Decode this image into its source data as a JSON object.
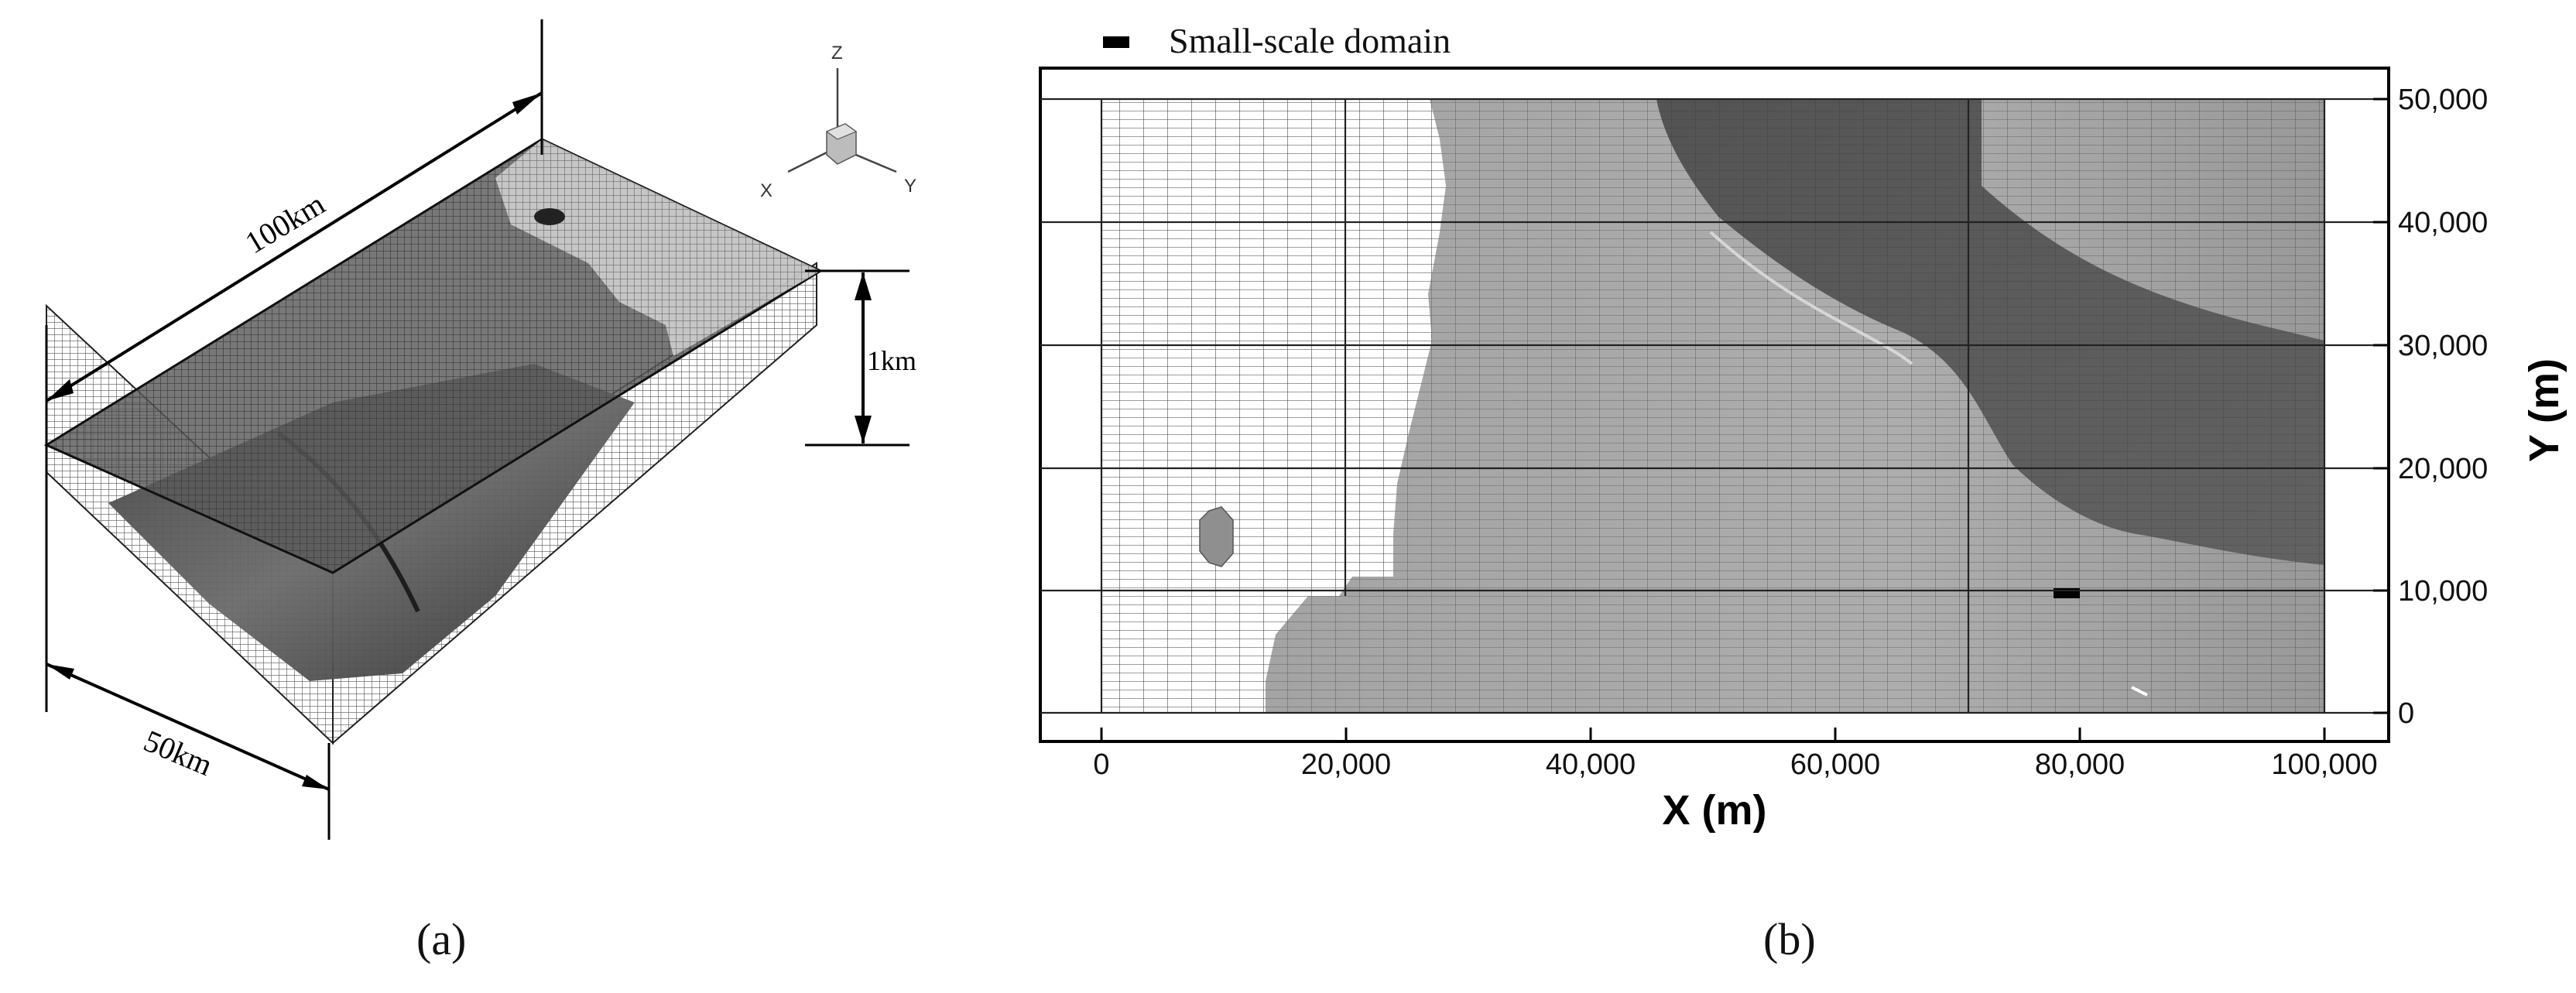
{
  "panel_a": {
    "dim_length": "100km",
    "dim_width": "50km",
    "dim_depth": "1km",
    "axis_z": "Z",
    "axis_x": "X",
    "axis_y": "Y",
    "caption": "(a)"
  },
  "panel_b": {
    "legend_label": "Small-scale domain",
    "xlabel": "X (m)",
    "ylabel": "Y (m)",
    "xticks": [
      "0",
      "20,000",
      "40,000",
      "60,000",
      "80,000",
      "100,000"
    ],
    "yticks": [
      "0",
      "10,000",
      "20,000",
      "30,000",
      "40,000",
      "50,000"
    ],
    "caption": "(b)"
  },
  "colors": {
    "mesh": "#2a2a2a",
    "terrain_light": "#a9a9a9",
    "terrain_dark": "#4d4d4d",
    "marker": "#000000"
  }
}
